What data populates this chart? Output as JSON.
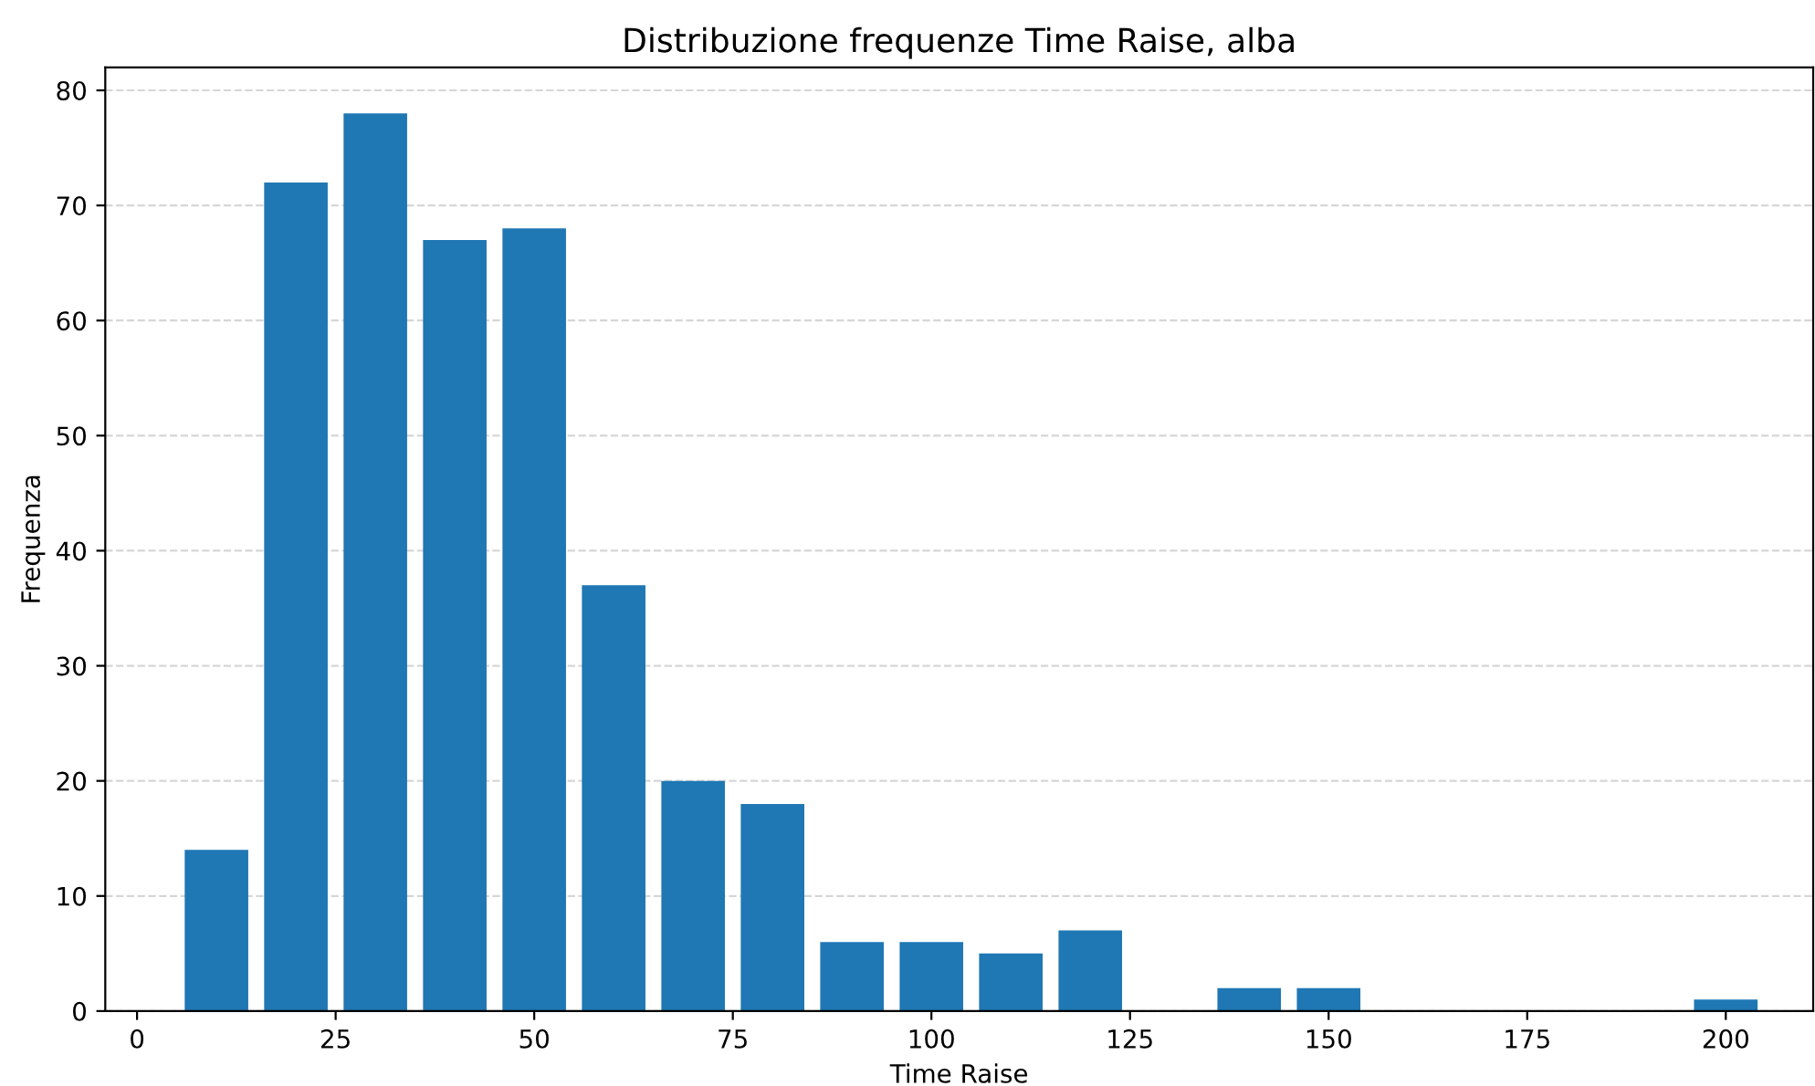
{
  "chart_data": {
    "type": "histogram",
    "title": "Distribuzione frequenze Time Raise, alba",
    "xlabel": "Time Raise",
    "ylabel": "Frequenza",
    "bins": [
      5,
      15,
      25,
      35,
      45,
      55,
      65,
      75,
      85,
      95,
      105,
      115,
      125,
      135,
      145,
      155,
      165,
      175,
      185,
      195,
      205
    ],
    "values": [
      14,
      72,
      78,
      67,
      68,
      37,
      20,
      18,
      6,
      6,
      5,
      7,
      0,
      2,
      2,
      0,
      0,
      0,
      0,
      1
    ],
    "color": "#1f77b4",
    "xlim": [
      -4,
      211
    ],
    "xticks": [
      0,
      25,
      50,
      75,
      100,
      125,
      150,
      175,
      200
    ],
    "ylim": [
      0,
      82
    ],
    "yticks": [
      0,
      10,
      20,
      30,
      40,
      50,
      60,
      70,
      80
    ],
    "grid": "y"
  }
}
